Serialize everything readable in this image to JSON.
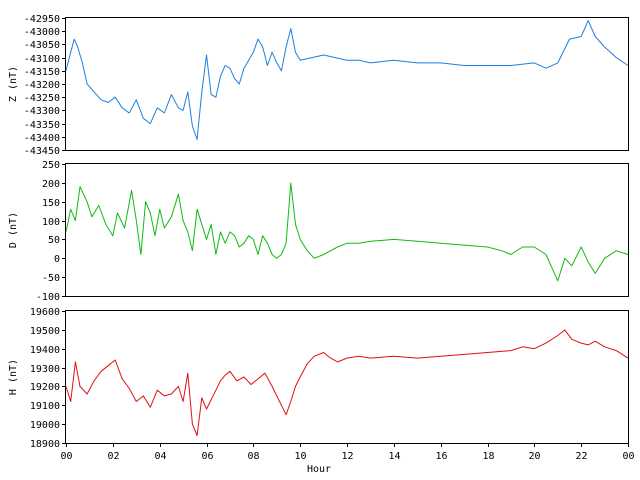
{
  "chart_data": [
    {
      "type": "line",
      "ylabel": "Z (nT)",
      "ylim": [
        -43450,
        -42950
      ],
      "yticks": [
        -42950,
        -43000,
        -43050,
        -43100,
        -43150,
        -43200,
        -43250,
        -43300,
        -43350,
        -43400,
        -43450
      ],
      "xlim": [
        0,
        24
      ],
      "xticks": [],
      "color": "#1e7fe0",
      "x": [
        0.0,
        0.2,
        0.35,
        0.5,
        0.7,
        0.9,
        1.2,
        1.5,
        1.8,
        2.1,
        2.4,
        2.7,
        3.0,
        3.3,
        3.6,
        3.9,
        4.2,
        4.5,
        4.8,
        5.0,
        5.2,
        5.4,
        5.6,
        5.8,
        6.0,
        6.2,
        6.4,
        6.6,
        6.8,
        7.0,
        7.2,
        7.4,
        7.6,
        7.8,
        8.0,
        8.2,
        8.4,
        8.6,
        8.8,
        9.0,
        9.2,
        9.4,
        9.6,
        9.8,
        10.0,
        10.5,
        11.0,
        11.5,
        12.0,
        12.5,
        13.0,
        14.0,
        15.0,
        16.0,
        17.0,
        18.0,
        19.0,
        20.0,
        20.5,
        21.0,
        21.5,
        22.0,
        22.3,
        22.6,
        23.0,
        23.5,
        24.0
      ],
      "values": [
        -43150,
        -43080,
        -43030,
        -43060,
        -43120,
        -43200,
        -43230,
        -43260,
        -43270,
        -43250,
        -43290,
        -43310,
        -43260,
        -43330,
        -43350,
        -43290,
        -43310,
        -43240,
        -43290,
        -43300,
        -43230,
        -43360,
        -43410,
        -43230,
        -43090,
        -43240,
        -43250,
        -43170,
        -43130,
        -43140,
        -43180,
        -43200,
        -43140,
        -43110,
        -43080,
        -43030,
        -43060,
        -43130,
        -43080,
        -43120,
        -43150,
        -43060,
        -42990,
        -43080,
        -43110,
        -43100,
        -43090,
        -43100,
        -43110,
        -43110,
        -43120,
        -43110,
        -43120,
        -43120,
        -43130,
        -43130,
        -43130,
        -43120,
        -43140,
        -43120,
        -43030,
        -43020,
        -42960,
        -43020,
        -43060,
        -43100,
        -43130
      ]
    },
    {
      "type": "line",
      "ylabel": "D (nT)",
      "ylim": [
        -100,
        250
      ],
      "yticks": [
        250,
        200,
        150,
        100,
        50,
        0,
        -50,
        -100
      ],
      "xlim": [
        0,
        24
      ],
      "xticks": [],
      "color": "#11bb11",
      "x": [
        0.0,
        0.2,
        0.4,
        0.6,
        0.9,
        1.1,
        1.4,
        1.7,
        2.0,
        2.2,
        2.5,
        2.8,
        3.0,
        3.2,
        3.4,
        3.6,
        3.8,
        4.0,
        4.2,
        4.5,
        4.8,
        5.0,
        5.2,
        5.4,
        5.6,
        5.8,
        6.0,
        6.2,
        6.4,
        6.6,
        6.8,
        7.0,
        7.2,
        7.4,
        7.6,
        7.8,
        8.0,
        8.2,
        8.4,
        8.6,
        8.8,
        9.0,
        9.2,
        9.4,
        9.6,
        9.8,
        10.0,
        10.3,
        10.6,
        11.0,
        11.3,
        11.6,
        12.0,
        12.5,
        13.0,
        14.0,
        15.0,
        16.0,
        17.0,
        18.0,
        18.6,
        19.0,
        19.5,
        20.0,
        20.5,
        21.0,
        21.3,
        21.6,
        22.0,
        22.3,
        22.6,
        23.0,
        23.5,
        24.0
      ],
      "values": [
        70,
        130,
        100,
        190,
        150,
        110,
        140,
        90,
        60,
        120,
        80,
        180,
        100,
        10,
        150,
        120,
        60,
        130,
        80,
        110,
        170,
        100,
        70,
        20,
        130,
        90,
        50,
        90,
        10,
        70,
        40,
        70,
        60,
        30,
        40,
        60,
        50,
        10,
        60,
        40,
        10,
        0,
        10,
        40,
        200,
        90,
        50,
        20,
        0,
        10,
        20,
        30,
        40,
        40,
        45,
        50,
        45,
        40,
        35,
        30,
        20,
        10,
        30,
        30,
        10,
        -60,
        0,
        -20,
        30,
        -10,
        -40,
        0,
        20,
        10
      ]
    },
    {
      "type": "line",
      "ylabel": "H (nT)",
      "xlabel": "Hour",
      "ylim": [
        18900,
        19600
      ],
      "yticks": [
        19600,
        19500,
        19400,
        19300,
        19200,
        19100,
        19000,
        18900
      ],
      "xlim": [
        0,
        24
      ],
      "xticks": [
        "00",
        "02",
        "04",
        "06",
        "08",
        "10",
        "12",
        "14",
        "16",
        "18",
        "20",
        "22",
        "00"
      ],
      "color": "#e01010",
      "x": [
        0.0,
        0.2,
        0.4,
        0.6,
        0.9,
        1.2,
        1.5,
        1.8,
        2.1,
        2.4,
        2.7,
        3.0,
        3.3,
        3.6,
        3.9,
        4.2,
        4.5,
        4.8,
        5.0,
        5.2,
        5.4,
        5.6,
        5.8,
        6.0,
        6.2,
        6.4,
        6.6,
        6.8,
        7.0,
        7.3,
        7.6,
        7.9,
        8.2,
        8.5,
        8.8,
        9.0,
        9.2,
        9.4,
        9.6,
        9.8,
        10.0,
        10.3,
        10.6,
        11.0,
        11.3,
        11.6,
        12.0,
        12.5,
        13.0,
        14.0,
        15.0,
        16.0,
        17.0,
        18.0,
        19.0,
        19.5,
        20.0,
        20.5,
        21.0,
        21.3,
        21.6,
        22.0,
        22.3,
        22.6,
        23.0,
        23.5,
        24.0
      ],
      "values": [
        19200,
        19120,
        19330,
        19200,
        19160,
        19230,
        19280,
        19310,
        19340,
        19240,
        19190,
        19120,
        19150,
        19090,
        19180,
        19150,
        19160,
        19200,
        19120,
        19270,
        19000,
        18940,
        19140,
        19080,
        19130,
        19180,
        19230,
        19260,
        19280,
        19230,
        19250,
        19210,
        19240,
        19270,
        19200,
        19150,
        19100,
        19050,
        19120,
        19200,
        19250,
        19320,
        19360,
        19380,
        19350,
        19330,
        19350,
        19360,
        19350,
        19360,
        19350,
        19360,
        19370,
        19380,
        19390,
        19410,
        19400,
        19430,
        19470,
        19500,
        19450,
        19430,
        19420,
        19440,
        19410,
        19390,
        19350
      ]
    }
  ]
}
